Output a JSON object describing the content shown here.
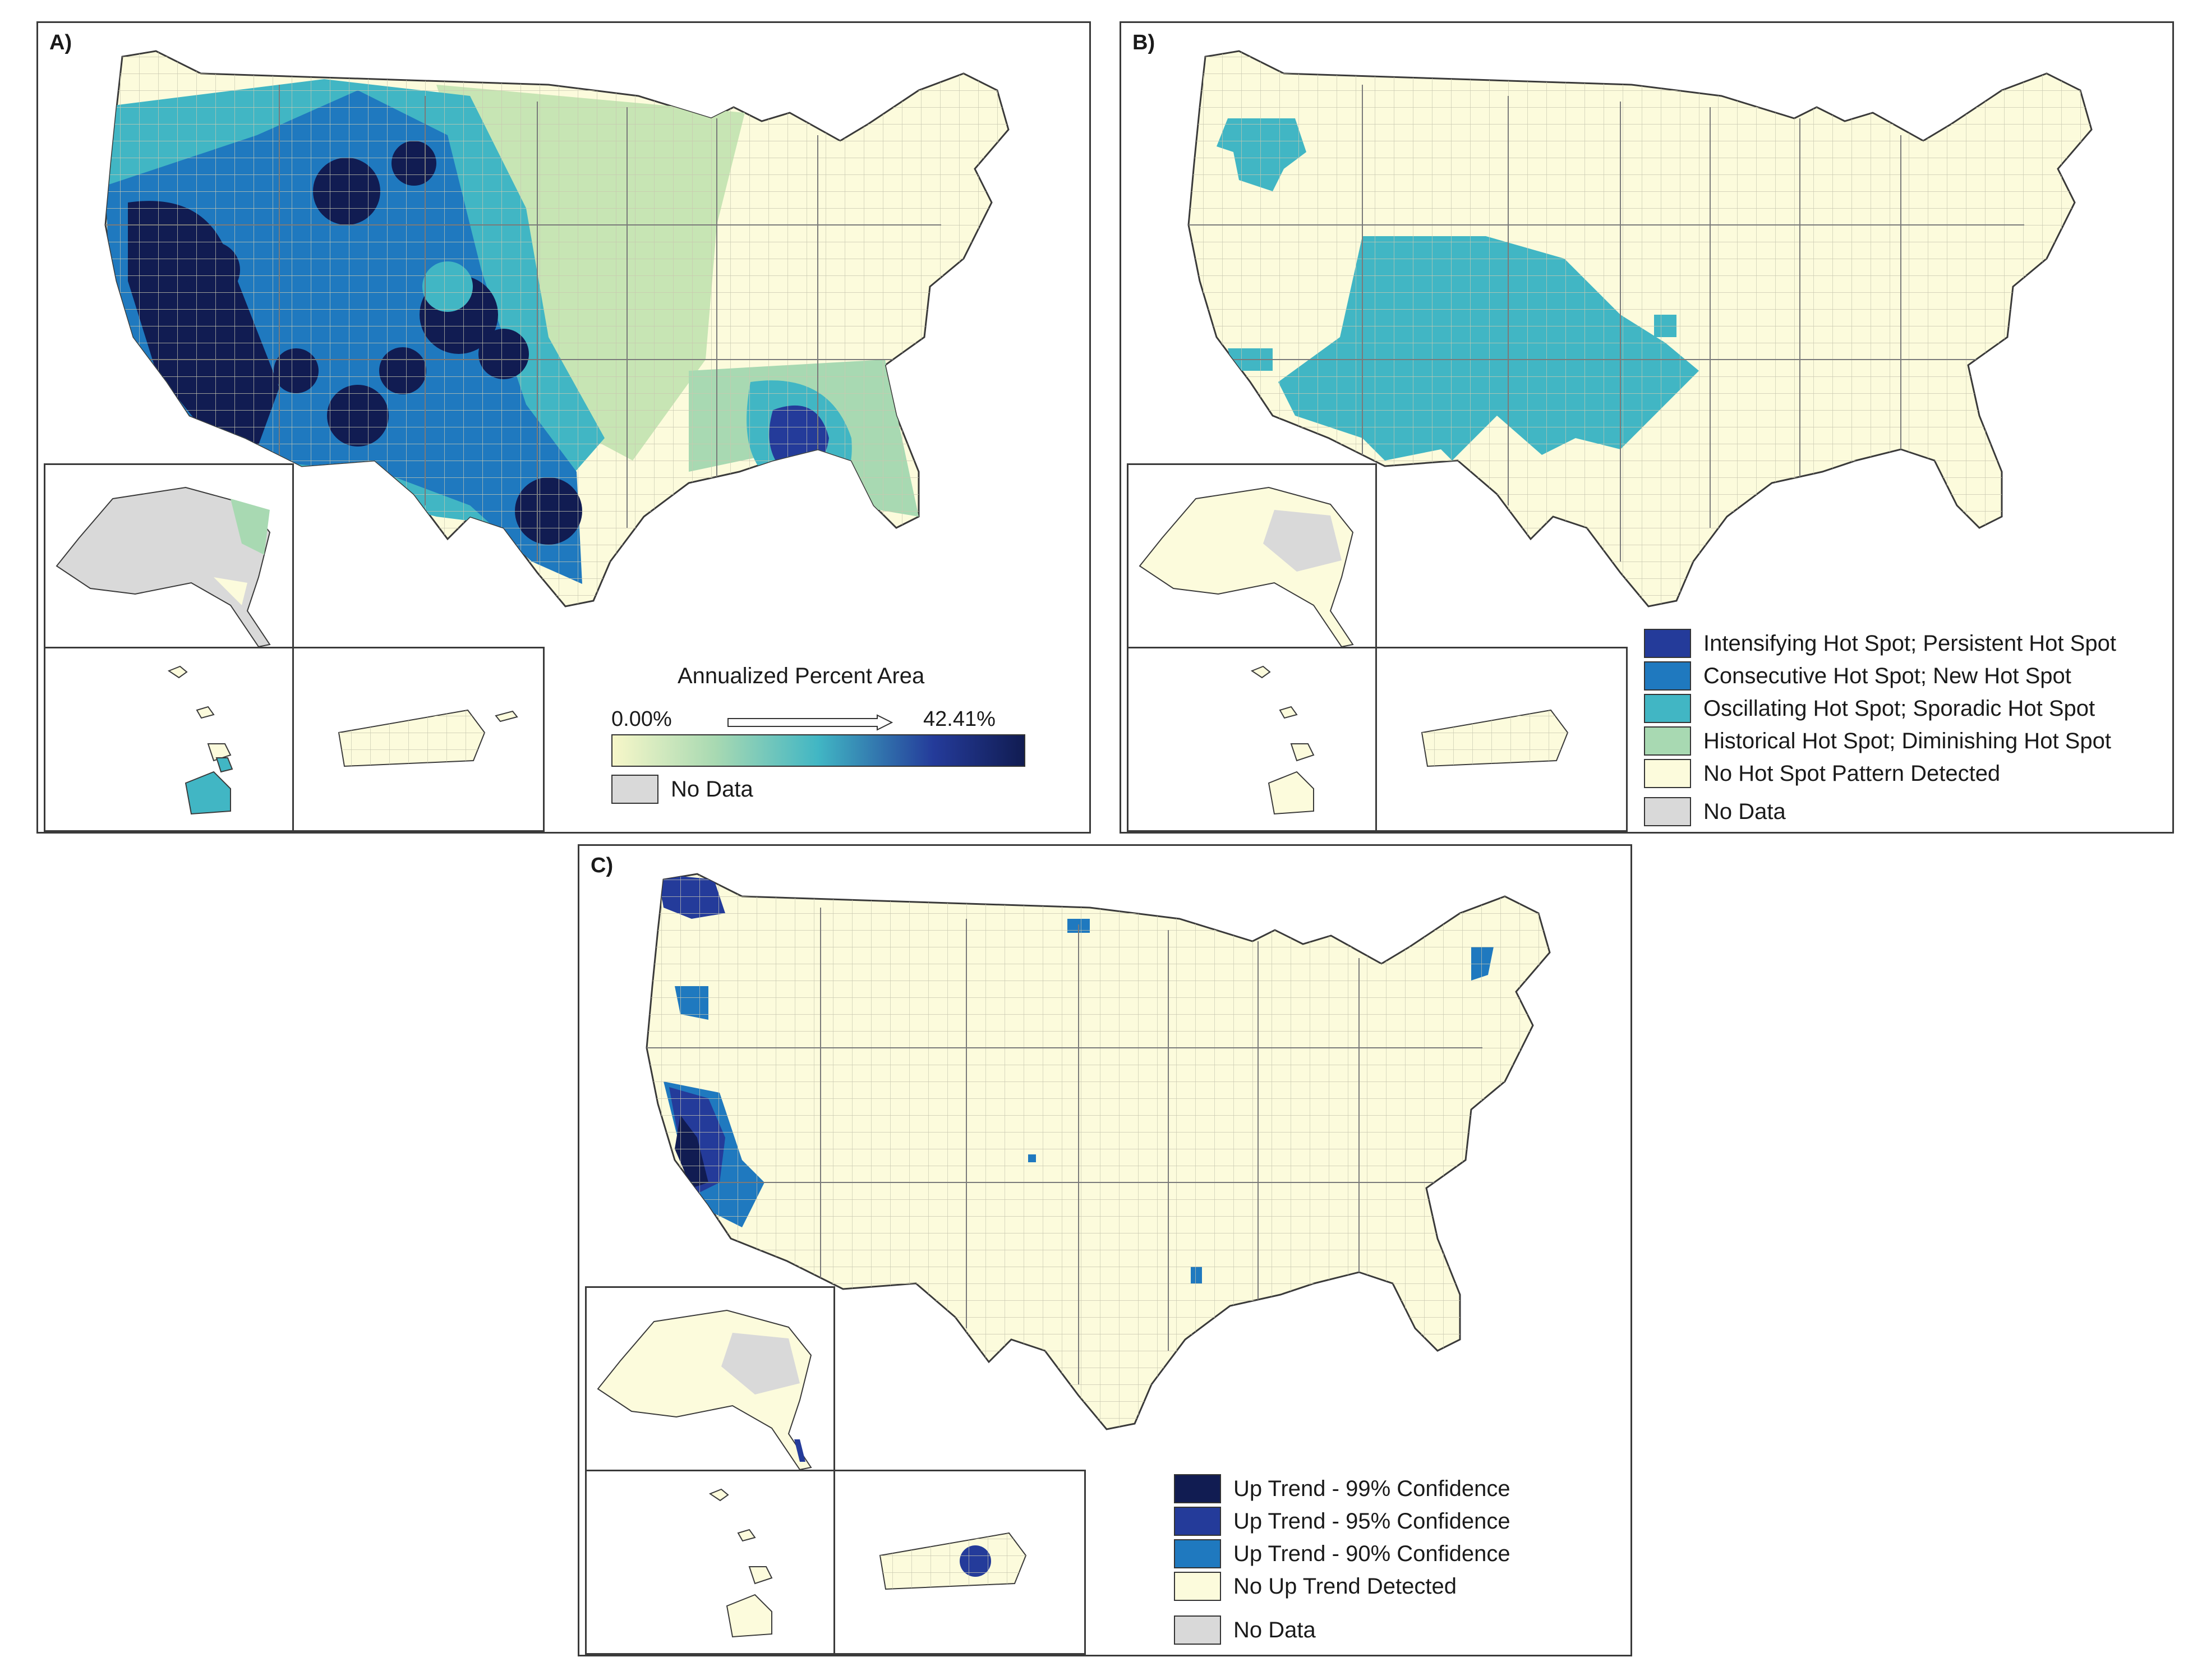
{
  "colors": {
    "no_pattern": "#fcfbdc",
    "no_data": "#d9d9d9",
    "border": "#3a3a3a",
    "county": "#c9c8b0",
    "ramp": [
      "#f7f7c9",
      "#a8d9b2",
      "#41b6c4",
      "#1f79bf",
      "#243b9a",
      "#111c52"
    ]
  },
  "panel_a": {
    "letter": "A)",
    "legend_title": "Annualized Percent Area",
    "ramp_min": "0.00%",
    "ramp_max": "42.41%",
    "no_data_label": "No Data"
  },
  "panel_b": {
    "letter": "B)",
    "legend": [
      {
        "label": "Intensifying Hot Spot; Persistent Hot Spot",
        "color": "#243b9a"
      },
      {
        "label": "Consecutive Hot Spot; New Hot Spot",
        "color": "#1f79bf"
      },
      {
        "label": "Oscillating Hot Spot; Sporadic Hot Spot",
        "color": "#41b6c4"
      },
      {
        "label": "Historical Hot Spot; Diminishing Hot Spot",
        "color": "#a8d9b2"
      },
      {
        "label": "No Hot Spot Pattern Detected",
        "color": "#fcfbdc"
      }
    ],
    "no_data_label": "No Data"
  },
  "panel_c": {
    "letter": "C)",
    "legend": [
      {
        "label": "Up Trend - 99% Confidence",
        "color": "#111c52"
      },
      {
        "label": "Up Trend - 95% Confidence",
        "color": "#243b9a"
      },
      {
        "label": "Up Trend - 90% Confidence",
        "color": "#1f79bf"
      },
      {
        "label": "No Up Trend Detected",
        "color": "#fcfbdc"
      }
    ],
    "no_data_label": "No Data"
  }
}
